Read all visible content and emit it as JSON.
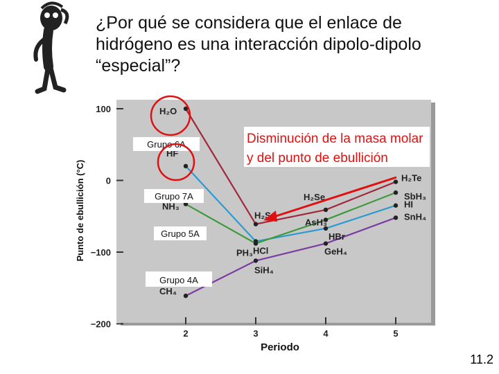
{
  "slide": {
    "title_lines": [
      "¿Por qué se considera que el enlace de",
      "hidrógeno es una interacción dipolo-dipolo",
      "“especial”?"
    ],
    "page_number": "11.2",
    "figure_icon": "thinking-stick-figure-icon"
  },
  "chart_data": {
    "type": "line",
    "xlabel": "Periodo",
    "ylabel": "Punto de ebullición (°C)",
    "x_ticks": [
      "2",
      "3",
      "4",
      "5"
    ],
    "y_ticks": [
      "100",
      "0",
      "−100",
      "−200"
    ],
    "ylim": [
      -200,
      110
    ],
    "xlim": [
      1,
      5.6
    ],
    "series": [
      {
        "name": "Grupo 6A",
        "color": "#a0283c",
        "x": [
          2,
          3,
          4,
          5
        ],
        "values": [
          100,
          -61,
          -41,
          -2
        ],
        "compounds": [
          "H₂O",
          "H₂S",
          "H₂Se",
          "H₂Te"
        ]
      },
      {
        "name": "Grupo 7A",
        "color": "#2a9ad0",
        "x": [
          2,
          3,
          4,
          5
        ],
        "values": [
          20,
          -85,
          -67,
          -35
        ],
        "compounds": [
          "HF",
          "HCl",
          "HBr",
          "HI"
        ]
      },
      {
        "name": "Grupo 5A",
        "color": "#3c9a3c",
        "x": [
          2,
          3,
          4,
          5
        ],
        "values": [
          -33,
          -88,
          -55,
          -17
        ],
        "compounds": [
          "NH₃",
          "PH₃",
          "AsH₃",
          "SbH₃"
        ]
      },
      {
        "name": "Grupo 4A",
        "color": "#7a3ca0",
        "x": [
          2,
          3,
          4,
          5
        ],
        "values": [
          -161,
          -112,
          -88,
          -52
        ],
        "compounds": [
          "CH₄",
          "SiH₄",
          "GeH₄",
          "SnH₄"
        ]
      }
    ],
    "annotation": {
      "text_lines": [
        "Disminución de la masa molar",
        "y del punto de ebullición"
      ],
      "color": "#e01010"
    },
    "highlight_color": "#e01010",
    "plot_background": "#c8c8c8"
  }
}
